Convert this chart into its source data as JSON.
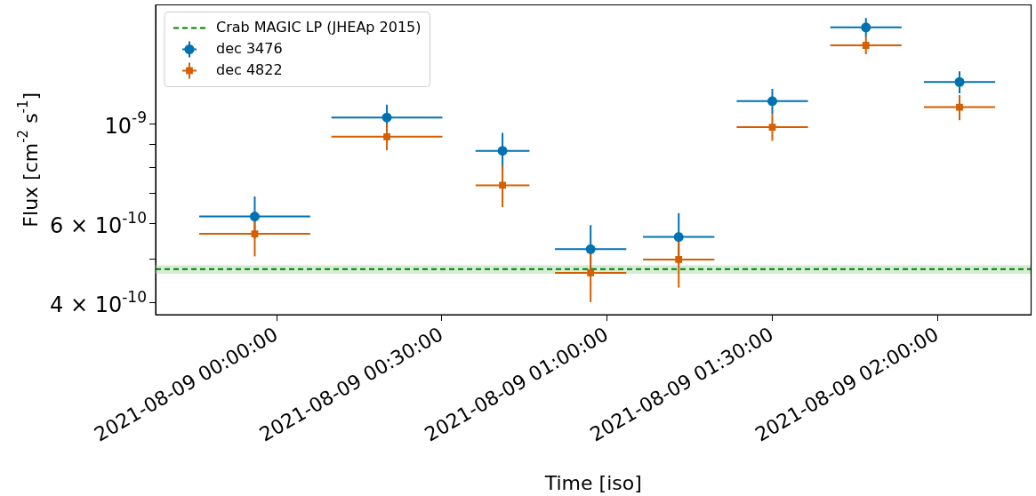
{
  "chart_data": {
    "type": "scatter",
    "xlabel": "Time [iso]",
    "ylabel": "Flux [cm$^{-2}$ s$^{-1}$]",
    "x": [
      "2021-08-08T23:56",
      "2021-08-09T00:20",
      "2021-08-09T00:41",
      "2021-08-09T00:57",
      "2021-08-09T01:13",
      "2021-08-09T01:30",
      "2021-08-09T01:47",
      "2021-08-09T02:04"
    ],
    "series": [
      {
        "name": "dec 3476",
        "color": "#0072b2",
        "marker": "circle",
        "values": [
          6.23e-10,
          1.034e-09,
          8.72e-10,
          5.27e-10,
          5.61e-10,
          1.124e-09,
          1.64e-09,
          1.24e-09
        ],
        "errors": [
          6.7e-11,
          7e-11,
          8.4e-11,
          6.9e-11,
          7.3e-11,
          7.3e-11,
          8e-11,
          7e-11
        ],
        "xerrors": [
          0.007,
          0.007,
          0.0034,
          0.0045,
          0.0045,
          0.0045,
          0.0045,
          0.0045
        ]
      },
      {
        "name": "dec 4822",
        "color": "#d55e00",
        "marker": "square",
        "values": [
          5.7e-10,
          9.37e-10,
          7.31e-10,
          4.67e-10,
          5e-10,
          9.84e-10,
          1.496e-09,
          1.09e-09
        ],
        "errors": [
          6.2e-11,
          6.2e-11,
          7.7e-11,
          6.5e-11,
          6.7e-11,
          6.7e-11,
          6.6e-11,
          7e-11
        ],
        "xerrors": [
          0.007,
          0.007,
          0.0034,
          0.0045,
          0.0045,
          0.0045,
          0.0045,
          0.0045
        ]
      }
    ],
    "xlim": [
      "2021-08-08T23:38",
      "2021-08-09T02:17"
    ],
    "xticks": [
      {
        "value": "2021-08-09T00:00",
        "label": "2021-08-09 00:00:00"
      },
      {
        "value": "2021-08-09T00:30",
        "label": "2021-08-09 00:30:00"
      },
      {
        "value": "2021-08-09T01:00",
        "label": "2021-08-09 01:00:00"
      },
      {
        "value": "2021-08-09T01:30",
        "label": "2021-08-09 01:30:00"
      },
      {
        "value": "2021-08-09T02:00",
        "label": "2021-08-09 02:00:00"
      }
    ],
    "ylim": [
      3.77e-10,
      1.84e-09
    ],
    "yticks": [
      {
        "value": 4e-10,
        "label": "4 × 10$^{-10}$"
      },
      {
        "value": 5e-10,
        "label": null
      },
      {
        "value": 6e-10,
        "label": "6 × 10$^{-10}$"
      },
      {
        "value": 7e-10,
        "label": null
      },
      {
        "value": 8e-10,
        "label": null
      },
      {
        "value": 9e-10,
        "label": null
      },
      {
        "value": 1e-09,
        "label": "10$^{-9}$"
      }
    ],
    "log": true,
    "grid": false,
    "legend": "top left",
    "ref_lines": [
      {
        "axis": "y",
        "value": 4.76e-10,
        "label": "Crab MAGIC LP (JHEAp 2015)",
        "color": "#008000",
        "line_style": "dashed"
      }
    ],
    "bands": [
      {
        "axis": "y",
        "from": 4.65e-10,
        "to": 4.86e-10,
        "color": "#d5ecd5"
      }
    ]
  }
}
